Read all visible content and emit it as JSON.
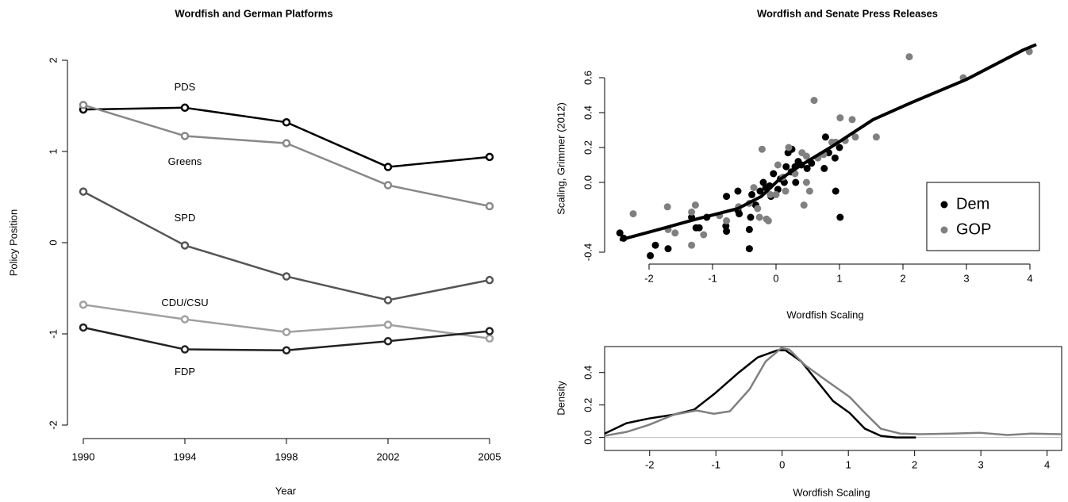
{
  "chart_data": [
    {
      "type": "line",
      "title": "Wordfish and German Platforms",
      "x_label": "Year",
      "y_label": "Policy Position",
      "categories": [
        "1990",
        "1994",
        "1998",
        "2002",
        "2005"
      ],
      "ylim": [
        -2.2,
        2.2
      ],
      "yticks": [
        -2,
        -1,
        0,
        1,
        2
      ],
      "series": [
        {
          "name": "PDS",
          "color": "#000000",
          "values": [
            1.46,
            1.48,
            1.32,
            0.83,
            0.94
          ]
        },
        {
          "name": "Greens",
          "color": "#888888",
          "values": [
            1.51,
            1.17,
            1.09,
            0.63,
            0.4
          ]
        },
        {
          "name": "SPD",
          "color": "#555555",
          "values": [
            0.56,
            -0.03,
            -0.37,
            -0.63,
            -0.41
          ]
        },
        {
          "name": "CDU/CSU",
          "color": "#a0a0a0",
          "values": [
            -0.68,
            -0.84,
            -0.98,
            -0.9,
            -1.05
          ]
        },
        {
          "name": "FDP",
          "color": "#222222",
          "values": [
            -0.93,
            -1.17,
            -1.18,
            -1.08,
            -0.97
          ]
        }
      ]
    },
    {
      "type": "scatter",
      "title": "Wordfish and Senate Press Releases",
      "x_label": "Wordfish Scaling",
      "y_label": "Scaling, Grimmer (2012)",
      "xlim": [
        -2.6,
        4.4
      ],
      "ylim": [
        -0.45,
        0.8
      ],
      "xticks": [
        -2,
        -1,
        0,
        1,
        2,
        3,
        4
      ],
      "yticks": [
        -0.4,
        {
          "value": 0,
          "label": "0.0"
        },
        0.2,
        0.4,
        0.6
      ],
      "legend": "bottomright",
      "series": [
        {
          "name": "Dem",
          "color": "#000000",
          "x": [
            -2.46,
            -2.4,
            -1.98,
            -1.9,
            -1.7,
            -1.33,
            -1.26,
            -1.21,
            -1.09,
            -0.79,
            -0.78,
            -0.78,
            -0.6,
            -0.58,
            -0.6,
            -0.42,
            -0.42,
            -0.4,
            -0.38,
            -0.32,
            -0.25,
            -0.2,
            -0.16,
            -0.1,
            -0.08,
            -0.04,
            0.03,
            0.07,
            0.13,
            0.16,
            0.19,
            0.24,
            0.25,
            0.3,
            0.35,
            0.4,
            0.31,
            0.76,
            0.83,
            0.78,
            0.93,
            1.0,
            0.94,
            1.01,
            0.56,
            0.49
          ],
          "values": [
            -0.29,
            -0.32,
            -0.42,
            -0.36,
            -0.38,
            -0.2,
            -0.26,
            -0.26,
            -0.2,
            -0.25,
            -0.28,
            -0.08,
            -0.16,
            -0.18,
            -0.05,
            -0.27,
            -0.38,
            -0.2,
            -0.07,
            -0.13,
            -0.05,
            0.0,
            -0.03,
            -0.02,
            -0.08,
            0.05,
            -0.04,
            0.02,
            0.0,
            0.09,
            0.17,
            0.06,
            0.19,
            0.09,
            0.12,
            0.1,
            0.0,
            0.08,
            0.17,
            0.26,
            0.14,
            0.2,
            -0.05,
            -0.2,
            0.11,
            0.08
          ]
        },
        {
          "name": "GOP",
          "color": "#808080",
          "x": [
            -2.25,
            -1.71,
            -1.7,
            -1.59,
            -1.33,
            -1.27,
            -1.33,
            -1.14,
            -0.89,
            -0.78,
            -0.59,
            -0.42,
            -0.35,
            -0.29,
            -0.26,
            -0.22,
            -0.15,
            -0.12,
            -0.09,
            0.0,
            0.03,
            0.11,
            0.15,
            0.2,
            0.3,
            0.41,
            0.48,
            0.44,
            0.48,
            0.53,
            0.6,
            0.66,
            0.75,
            0.88,
            0.94,
            1.01,
            1.09,
            1.2,
            1.25,
            1.58,
            2.1,
            2.95,
            3.99
          ],
          "values": [
            -0.18,
            -0.14,
            -0.27,
            -0.29,
            -0.36,
            -0.13,
            -0.17,
            -0.3,
            -0.19,
            -0.22,
            -0.14,
            -0.12,
            -0.03,
            -0.15,
            -0.2,
            0.19,
            -0.21,
            -0.22,
            -0.07,
            -0.07,
            0.1,
            0.03,
            -0.05,
            0.2,
            0.05,
            0.17,
            0.15,
            -0.13,
            0.0,
            -0.05,
            0.47,
            0.14,
            0.16,
            0.23,
            0.23,
            0.37,
            0.24,
            0.36,
            0.26,
            0.26,
            0.72,
            0.6,
            0.75
          ]
        }
      ],
      "lines": [
        {
          "color": "#000000",
          "x": [
            -2.46,
            -1.85,
            -1.25,
            -0.6,
            -0.23,
            0.03,
            0.4,
            0.9,
            1.53,
            2.15,
            3.0,
            3.9,
            4.1
          ],
          "values": [
            -0.33,
            -0.27,
            -0.21,
            -0.15,
            -0.08,
            0.01,
            0.1,
            0.21,
            0.36,
            0.46,
            0.59,
            0.76,
            0.79
          ]
        }
      ]
    },
    {
      "type": "line",
      "x_label": "Wordfish Scaling",
      "y_label": "Density",
      "xlim": [
        -2.68,
        4.22
      ],
      "ylim": [
        -0.08,
        0.56
      ],
      "xticks": [
        -2,
        -1,
        0,
        1,
        2,
        3,
        4
      ],
      "yticks": [
        {
          "value": 0,
          "label": "0.0"
        },
        0.2,
        0.4
      ],
      "zero_line": true,
      "series": [
        {
          "color": "#000000",
          "x": [
            -2.68,
            -2.35,
            -2.01,
            -1.63,
            -1.33,
            -1.01,
            -0.67,
            -0.37,
            -0.07,
            0.05,
            0.29,
            0.53,
            0.77,
            1.02,
            1.25,
            1.49,
            1.72,
            2.02
          ],
          "values": [
            0.024,
            0.088,
            0.117,
            0.141,
            0.171,
            0.273,
            0.395,
            0.493,
            0.537,
            0.537,
            0.468,
            0.346,
            0.224,
            0.151,
            0.054,
            0.01,
            0.0,
            0.0
          ]
        },
        {
          "color": "#808080",
          "x": [
            -2.68,
            -2.35,
            -2.01,
            -1.63,
            -1.29,
            -1.03,
            -0.79,
            -0.49,
            -0.25,
            -0.01,
            0.11,
            0.35,
            0.65,
            1.02,
            1.25,
            1.49,
            1.78,
            2.08,
            2.56,
            2.98,
            3.4,
            3.76,
            4.22
          ],
          "values": [
            0.01,
            0.034,
            0.078,
            0.141,
            0.166,
            0.146,
            0.161,
            0.298,
            0.468,
            0.551,
            0.541,
            0.444,
            0.356,
            0.249,
            0.151,
            0.054,
            0.024,
            0.02,
            0.024,
            0.029,
            0.015,
            0.024,
            0.02
          ]
        }
      ]
    }
  ]
}
